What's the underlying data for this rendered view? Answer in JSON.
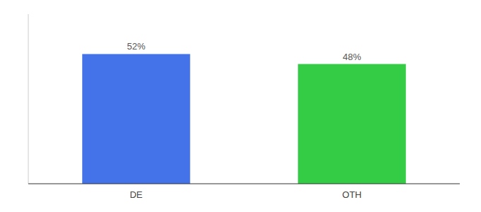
{
  "chart_data": {
    "type": "bar",
    "categories": [
      "DE",
      "OTH"
    ],
    "values": [
      52,
      48
    ],
    "value_labels": [
      "52%",
      "48%"
    ],
    "colors": [
      "#4472e8",
      "#33cc44"
    ],
    "ylim": [
      0,
      68
    ],
    "data_labels": true,
    "tick_labels": "x"
  }
}
